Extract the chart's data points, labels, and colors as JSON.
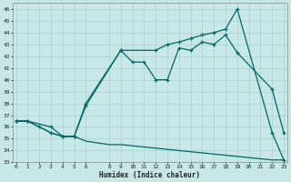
{
  "xlabel": "Humidex (Indice chaleur)",
  "bg_color": "#c8e8e8",
  "line_color": "#006666",
  "grid_color": "#a8d0d0",
  "ylim": [
    33,
    46.5
  ],
  "xlim": [
    -0.3,
    23.3
  ],
  "yticks": [
    33,
    34,
    35,
    36,
    37,
    38,
    39,
    40,
    41,
    42,
    43,
    44,
    45,
    46
  ],
  "xticks": [
    0,
    1,
    2,
    3,
    4,
    5,
    6,
    8,
    9,
    10,
    11,
    12,
    13,
    14,
    15,
    16,
    17,
    18,
    19,
    20,
    21,
    22,
    23
  ],
  "line1_x": [
    0,
    1,
    2,
    3,
    4,
    5,
    6,
    8,
    9,
    10,
    11,
    12,
    13,
    14,
    15,
    16,
    17,
    18,
    19,
    20,
    21,
    22,
    23
  ],
  "line1_y": [
    36.5,
    36.5,
    36.0,
    35.5,
    35.2,
    35.2,
    34.8,
    34.5,
    34.5,
    34.4,
    34.3,
    34.2,
    34.1,
    34.0,
    33.9,
    33.8,
    33.7,
    33.6,
    33.5,
    33.4,
    33.3,
    33.2,
    33.2
  ],
  "line2_x": [
    0,
    1,
    2,
    3,
    4,
    5,
    6,
    9,
    10,
    11,
    12,
    13,
    14,
    15,
    16,
    17,
    18,
    19,
    22,
    23
  ],
  "line2_y": [
    36.5,
    36.5,
    36.0,
    35.5,
    35.2,
    35.2,
    37.8,
    42.5,
    41.5,
    41.5,
    40.0,
    40.0,
    42.7,
    42.5,
    43.2,
    43.0,
    43.8,
    42.3,
    39.2,
    35.5
  ],
  "line3_x": [
    0,
    1,
    3,
    4,
    5,
    6,
    9,
    12,
    13,
    14,
    15,
    16,
    17,
    18,
    19,
    22,
    23
  ],
  "line3_y": [
    36.5,
    36.5,
    36.0,
    35.2,
    35.2,
    38.0,
    42.5,
    42.5,
    43.0,
    43.2,
    43.5,
    43.8,
    44.0,
    44.3,
    46.0,
    35.5,
    33.2
  ]
}
